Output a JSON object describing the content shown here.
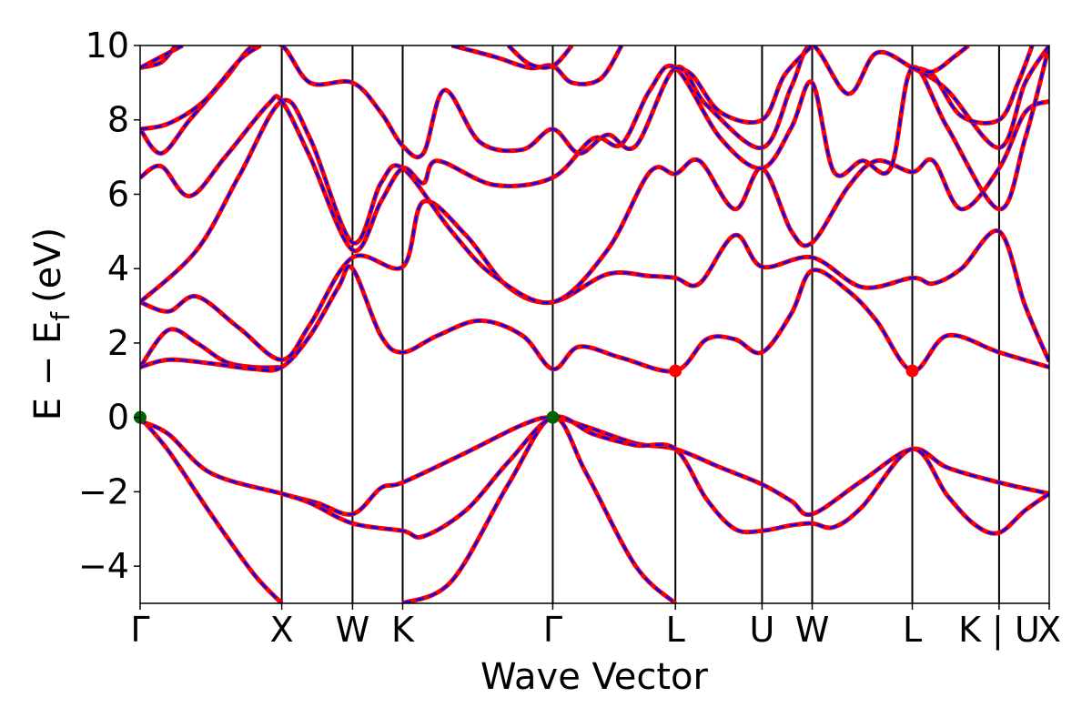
{
  "chart_data": {
    "type": "line",
    "title": "",
    "xlabel": "Wave Vector",
    "ylabel_main": "E − E",
    "ylabel_sub": "f",
    "ylabel_unit": "(eV)",
    "ylim": [
      -5,
      10
    ],
    "yticks": [
      -4,
      -2,
      0,
      2,
      4,
      6,
      8,
      10
    ],
    "ytick_labels": [
      "−4",
      "−2",
      "0",
      "2",
      "4",
      "6",
      "8",
      "10"
    ],
    "kpath": [
      {
        "label": "Γ",
        "x": 0.0
      },
      {
        "label": "X",
        "x": 1.0
      },
      {
        "label": "W",
        "x": 1.5
      },
      {
        "label": "K",
        "x": 1.854
      },
      {
        "label": "Γ",
        "x": 2.914
      },
      {
        "label": "L",
        "x": 3.78
      },
      {
        "label": "U",
        "x": 4.392
      },
      {
        "label": "W",
        "x": 4.746
      },
      {
        "label": "L",
        "x": 5.453
      },
      {
        "label": "K | U",
        "x": 6.066
      },
      {
        "label": "X",
        "x": 6.42
      }
    ],
    "line_styles": {
      "solid_color": "#ff0000",
      "dash_color": "#0000ff"
    },
    "markers": [
      {
        "name": "VBM",
        "x": 0.0,
        "y": 0.0,
        "color": "#006400"
      },
      {
        "name": "VBM",
        "x": 2.914,
        "y": 0.0,
        "color": "#006400"
      },
      {
        "name": "CBM",
        "x": 3.78,
        "y": 1.25,
        "color": "#ff0000"
      },
      {
        "name": "CBM",
        "x": 5.453,
        "y": 1.25,
        "color": "#ff0000"
      }
    ],
    "series": [
      {
        "values": [
          [
            0,
            -0.1
          ],
          [
            0.2,
            -0.45
          ],
          [
            0.5,
            -1.5
          ],
          [
            1.0,
            -2.05
          ],
          [
            1.25,
            -2.3
          ],
          [
            1.5,
            -2.6
          ],
          [
            1.7,
            -1.9
          ],
          [
            1.854,
            -1.75
          ],
          [
            2.3,
            -0.95
          ],
          [
            2.7,
            -0.2
          ],
          [
            2.914,
            0.0
          ],
          [
            3.15,
            -0.25
          ],
          [
            3.5,
            -0.7
          ],
          [
            3.78,
            -0.85
          ],
          [
            4.1,
            -1.35
          ],
          [
            4.392,
            -1.8
          ],
          [
            4.6,
            -2.25
          ],
          [
            4.746,
            -2.6
          ],
          [
            5.1,
            -1.7
          ],
          [
            5.453,
            -0.85
          ],
          [
            5.7,
            -1.35
          ],
          [
            6.066,
            -1.75
          ],
          [
            6.42,
            -2.05
          ]
        ]
      },
      {
        "values": [
          [
            0,
            0.0
          ],
          [
            0.2,
            -0.9
          ],
          [
            0.5,
            -2.6
          ],
          [
            0.8,
            -4.2
          ],
          [
            1.0,
            -5.0
          ]
        ]
      },
      {
        "values": [
          [
            1.854,
            -5.0
          ],
          [
            2.2,
            -4.4
          ],
          [
            2.6,
            -1.8
          ],
          [
            2.914,
            0.0
          ],
          [
            3.15,
            -1.5
          ],
          [
            3.5,
            -4.0
          ],
          [
            3.78,
            -5.0
          ]
        ]
      },
      {
        "values": [
          [
            1.0,
            -2.05
          ],
          [
            1.2,
            -2.3
          ],
          [
            1.5,
            -2.85
          ],
          [
            1.854,
            -3.05
          ],
          [
            2.0,
            -3.2
          ],
          [
            2.3,
            -2.5
          ],
          [
            2.6,
            -1.2
          ],
          [
            2.914,
            0.0
          ],
          [
            3.2,
            -0.45
          ],
          [
            3.5,
            -0.75
          ],
          [
            3.78,
            -0.85
          ],
          [
            4.0,
            -2.2
          ],
          [
            4.2,
            -3.0
          ],
          [
            4.392,
            -3.05
          ],
          [
            4.6,
            -2.9
          ],
          [
            4.746,
            -2.85
          ],
          [
            4.9,
            -2.95
          ],
          [
            5.1,
            -2.4
          ],
          [
            5.453,
            -0.85
          ],
          [
            5.7,
            -2.1
          ],
          [
            5.9,
            -2.9
          ],
          [
            6.066,
            -3.1
          ],
          [
            6.25,
            -2.5
          ],
          [
            6.42,
            -2.05
          ]
        ]
      },
      {
        "values": [
          [
            0,
            1.35
          ],
          [
            0.2,
            2.35
          ],
          [
            0.4,
            2.0
          ],
          [
            0.6,
            1.5
          ],
          [
            0.8,
            1.35
          ],
          [
            1.0,
            1.35
          ]
        ]
      },
      {
        "values": [
          [
            0,
            1.35
          ],
          [
            0.2,
            1.55
          ],
          [
            0.5,
            1.45
          ],
          [
            0.8,
            1.3
          ],
          [
            1.0,
            1.35
          ],
          [
            1.2,
            2.2
          ],
          [
            1.4,
            3.5
          ],
          [
            1.5,
            4.0
          ],
          [
            1.7,
            2.2
          ],
          [
            1.854,
            1.75
          ],
          [
            2.1,
            2.2
          ],
          [
            2.4,
            2.6
          ],
          [
            2.7,
            2.2
          ],
          [
            2.914,
            1.3
          ],
          [
            3.1,
            1.9
          ],
          [
            3.4,
            1.6
          ],
          [
            3.78,
            1.25
          ],
          [
            4.0,
            2.1
          ],
          [
            4.2,
            2.1
          ],
          [
            4.392,
            1.75
          ],
          [
            4.6,
            2.8
          ],
          [
            4.746,
            3.95
          ],
          [
            5.0,
            3.4
          ],
          [
            5.2,
            2.6
          ],
          [
            5.453,
            1.25
          ],
          [
            5.7,
            2.2
          ],
          [
            6.066,
            1.75
          ],
          [
            6.42,
            1.35
          ]
        ]
      },
      {
        "values": [
          [
            0,
            3.1
          ],
          [
            0.2,
            2.85
          ],
          [
            0.4,
            3.25
          ],
          [
            0.7,
            2.4
          ],
          [
            1.0,
            1.55
          ],
          [
            1.2,
            2.5
          ],
          [
            1.5,
            4.3
          ],
          [
            1.854,
            4.05
          ],
          [
            2.0,
            5.8
          ],
          [
            2.3,
            4.9
          ],
          [
            2.6,
            3.5
          ],
          [
            2.914,
            3.1
          ],
          [
            3.3,
            3.85
          ],
          [
            3.6,
            3.8
          ],
          [
            3.78,
            3.75
          ],
          [
            3.95,
            3.6
          ],
          [
            4.2,
            4.9
          ],
          [
            4.392,
            4.05
          ],
          [
            4.746,
            4.3
          ],
          [
            5.1,
            3.5
          ],
          [
            5.453,
            3.75
          ],
          [
            5.6,
            3.6
          ],
          [
            5.8,
            4.0
          ],
          [
            6.066,
            5.0
          ],
          [
            6.25,
            3.0
          ],
          [
            6.42,
            1.5
          ]
        ]
      },
      {
        "values": [
          [
            0,
            3.1
          ],
          [
            0.4,
            4.5
          ],
          [
            0.7,
            6.5
          ],
          [
            1.0,
            8.5
          ],
          [
            1.2,
            7.5
          ],
          [
            1.5,
            4.7
          ],
          [
            1.7,
            6.3
          ],
          [
            1.854,
            6.7
          ],
          [
            2.2,
            5.0
          ],
          [
            2.5,
            3.8
          ],
          [
            2.914,
            3.1
          ],
          [
            3.3,
            4.5
          ],
          [
            3.6,
            6.6
          ],
          [
            3.78,
            6.55
          ],
          [
            3.95,
            6.9
          ],
          [
            4.2,
            5.6
          ],
          [
            4.392,
            6.7
          ],
          [
            4.6,
            5.0
          ],
          [
            4.746,
            4.7
          ],
          [
            5.0,
            6.2
          ],
          [
            5.2,
            6.9
          ],
          [
            5.453,
            6.6
          ],
          [
            5.6,
            6.9
          ],
          [
            5.8,
            5.6
          ],
          [
            6.066,
            6.7
          ],
          [
            6.25,
            8.2
          ],
          [
            6.42,
            8.5
          ]
        ]
      },
      {
        "values": [
          [
            0,
            6.45
          ],
          [
            0.15,
            6.75
          ],
          [
            0.35,
            5.95
          ],
          [
            0.6,
            7.0
          ],
          [
            0.9,
            8.4
          ],
          [
            1.0,
            8.5
          ],
          [
            1.2,
            7.0
          ],
          [
            1.5,
            4.5
          ],
          [
            1.7,
            5.8
          ],
          [
            1.854,
            6.7
          ],
          [
            2.0,
            6.3
          ],
          [
            2.1,
            6.9
          ],
          [
            2.5,
            6.25
          ],
          [
            2.914,
            6.45
          ],
          [
            3.2,
            7.5
          ],
          [
            3.4,
            7.35
          ],
          [
            3.6,
            8.8
          ],
          [
            3.78,
            9.4
          ],
          [
            4.1,
            7.5
          ],
          [
            4.392,
            6.7
          ],
          [
            4.6,
            7.8
          ],
          [
            4.746,
            9.0
          ],
          [
            4.9,
            6.6
          ],
          [
            5.1,
            6.9
          ],
          [
            5.3,
            6.7
          ],
          [
            5.453,
            9.4
          ],
          [
            5.7,
            7.8
          ],
          [
            6.066,
            5.6
          ],
          [
            6.25,
            7.5
          ],
          [
            6.42,
            10.0
          ]
        ]
      },
      {
        "values": [
          [
            0,
            7.75
          ],
          [
            0.15,
            7.1
          ],
          [
            0.35,
            8.0
          ],
          [
            0.6,
            9.1
          ],
          [
            0.8,
            10.0
          ],
          [
            1.0,
            10.0
          ],
          [
            1.2,
            9.0
          ],
          [
            1.5,
            9.0
          ],
          [
            1.7,
            8.2
          ],
          [
            1.854,
            7.3
          ],
          [
            2.0,
            7.1
          ],
          [
            2.15,
            8.8
          ],
          [
            2.4,
            7.4
          ],
          [
            2.7,
            7.2
          ],
          [
            2.914,
            7.75
          ],
          [
            3.1,
            7.1
          ],
          [
            3.3,
            7.6
          ],
          [
            3.5,
            7.3
          ],
          [
            3.78,
            9.4
          ],
          [
            4.0,
            8.4
          ],
          [
            4.392,
            7.25
          ],
          [
            4.6,
            8.9
          ],
          [
            4.746,
            10.0
          ],
          [
            5.0,
            8.7
          ],
          [
            5.2,
            9.8
          ],
          [
            5.453,
            9.4
          ],
          [
            5.7,
            8.8
          ],
          [
            6.066,
            7.25
          ],
          [
            6.25,
            9.0
          ],
          [
            6.42,
            10.0
          ]
        ]
      },
      {
        "values": [
          [
            0,
            7.75
          ],
          [
            0.2,
            7.9
          ],
          [
            0.45,
            8.5
          ],
          [
            0.7,
            9.6
          ],
          [
            0.85,
            10.0
          ]
        ]
      },
      {
        "values": [
          [
            0,
            9.4
          ],
          [
            0.15,
            9.55
          ],
          [
            0.25,
            10.0
          ]
        ]
      },
      {
        "values": [
          [
            0,
            9.4
          ],
          [
            0.3,
            10.0
          ]
        ]
      },
      {
        "values": [
          [
            2.2,
            10.0
          ],
          [
            2.5,
            9.7
          ],
          [
            2.75,
            9.4
          ],
          [
            2.914,
            9.45
          ],
          [
            3.05,
            9.0
          ],
          [
            3.25,
            9.1
          ],
          [
            3.4,
            10.0
          ]
        ]
      },
      {
        "values": [
          [
            2.6,
            10.0
          ],
          [
            2.75,
            9.5
          ],
          [
            2.914,
            9.45
          ],
          [
            3.05,
            10.0
          ]
        ]
      },
      {
        "values": [
          [
            3.78,
            9.4
          ],
          [
            3.9,
            9.2
          ],
          [
            4.1,
            8.2
          ],
          [
            4.392,
            8.0
          ],
          [
            4.55,
            9.2
          ],
          [
            4.746,
            10.0
          ]
        ]
      },
      {
        "values": [
          [
            5.453,
            9.4
          ],
          [
            5.6,
            9.2
          ],
          [
            5.8,
            8.1
          ],
          [
            6.066,
            8.0
          ],
          [
            6.2,
            9.0
          ],
          [
            6.3,
            10.0
          ]
        ]
      },
      {
        "values": [
          [
            5.453,
            9.4
          ],
          [
            5.6,
            9.3
          ],
          [
            5.75,
            9.7
          ],
          [
            5.85,
            10.0
          ]
        ]
      }
    ]
  }
}
